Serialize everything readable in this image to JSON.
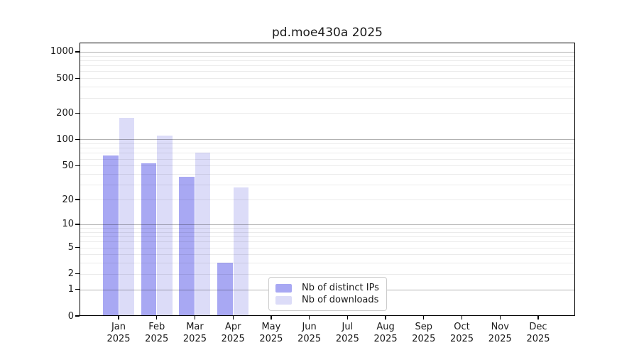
{
  "chart_data": {
    "type": "bar",
    "title": "pd.moe430a 2025",
    "x_categories": [
      "Jan",
      "Feb",
      "Mar",
      "Apr",
      "May",
      "Jun",
      "Jul",
      "Aug",
      "Sep",
      "Oct",
      "Nov",
      "Dec"
    ],
    "x_year_label": "2025",
    "series": [
      {
        "name": "Nb of distinct IPs",
        "color": "#a8a8f3",
        "values": [
          66,
          53,
          37,
          3,
          null,
          null,
          null,
          null,
          null,
          null,
          null,
          null
        ]
      },
      {
        "name": "Nb of downloads",
        "color": "#dcdcf8",
        "values": [
          176,
          111,
          71,
          28,
          null,
          null,
          null,
          null,
          null,
          null,
          null,
          null
        ]
      }
    ],
    "y_ticks": [
      0,
      1,
      2,
      5,
      10,
      20,
      50,
      100,
      200,
      500,
      1000
    ],
    "y_major_gridlines": [
      1,
      10,
      100,
      1000
    ],
    "y_scale": "log10(value+1)",
    "ylim": [
      0,
      1272
    ],
    "grid": true,
    "legend_position": "inside-bottom-center",
    "colors": {
      "major_grid": "#b0b0b0",
      "minor_grid": "#eaeaea",
      "axis": "#000000",
      "text": "#1a1a1a",
      "background": "#ffffff"
    }
  }
}
